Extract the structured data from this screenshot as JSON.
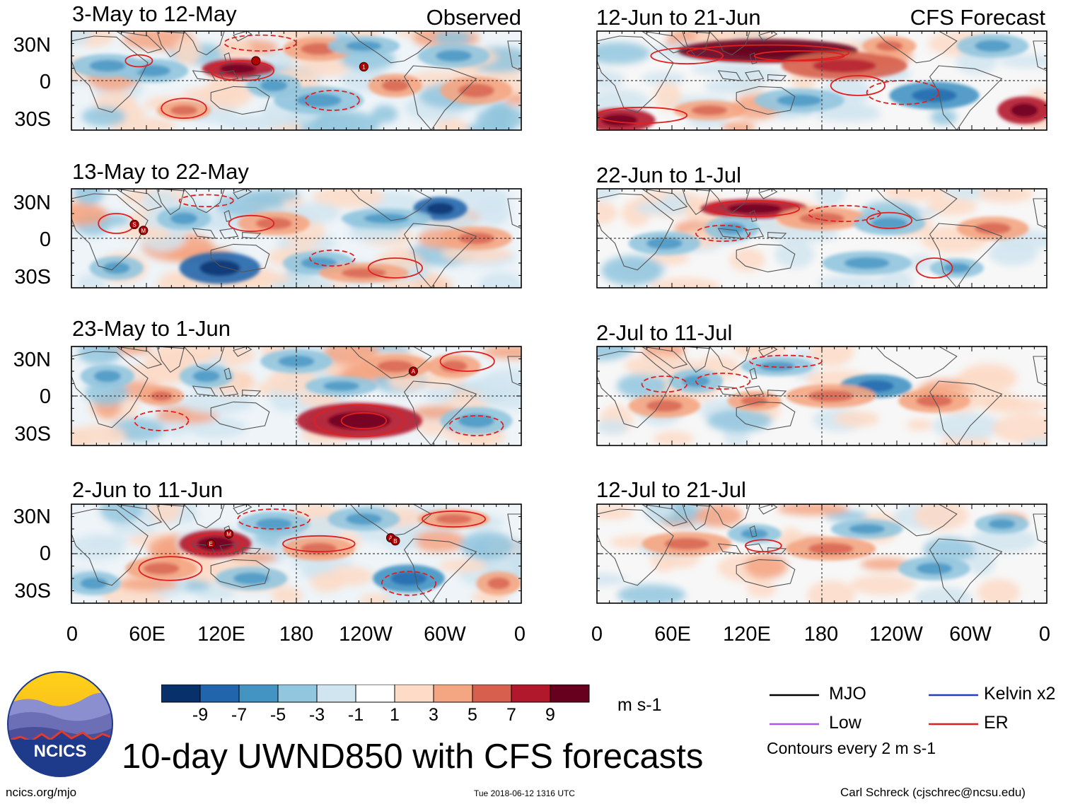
{
  "chart_data": {
    "type": "heatmap",
    "title": "10-day UWND850 with CFS forecasts",
    "variable": "UWND850",
    "units": "m s-1",
    "columns": [
      {
        "name": "Observed",
        "panels": [
          "3-May to 12-May",
          "13-May to 22-May",
          "23-May to 1-Jun",
          "2-Jun to 11-Jun"
        ]
      },
      {
        "name": "CFS Forecast",
        "panels": [
          "12-Jun to 21-Jun",
          "22-Jun to 1-Jul",
          "2-Jul to 11-Jul",
          "12-Jul to 21-Jul"
        ]
      }
    ],
    "y_ticks": [
      "30N",
      "0",
      "30S"
    ],
    "x_ticks": [
      "0",
      "60E",
      "120E",
      "180",
      "120W",
      "60W",
      "0"
    ],
    "colorbar": {
      "colors": [
        "#08306b",
        "#2166ac",
        "#4393c3",
        "#92c5de",
        "#d1e5f0",
        "#ffffff",
        "#fddbc7",
        "#f4a582",
        "#d6604d",
        "#b2182b",
        "#67001f"
      ],
      "labels": [
        "-9",
        "-7",
        "-5",
        "-3",
        "-1",
        "1",
        "3",
        "5",
        "7",
        "9"
      ]
    },
    "legend": [
      {
        "label": "MJO",
        "color": "#000000"
      },
      {
        "label": "Kelvin x2",
        "color": "#1f3fbf"
      },
      {
        "label": "Low",
        "color": "#a855f7"
      },
      {
        "label": "ER",
        "color": "#e02020"
      }
    ],
    "contour_note": "Contours every 2 m s-1"
  },
  "logo_text": "NCICS",
  "footer": {
    "left": "ncics.org/mjo",
    "center": "Tue 2018-06-12 1316 UTC",
    "right": "Carl Schreck (cjschrec@ncsu.edu)"
  }
}
